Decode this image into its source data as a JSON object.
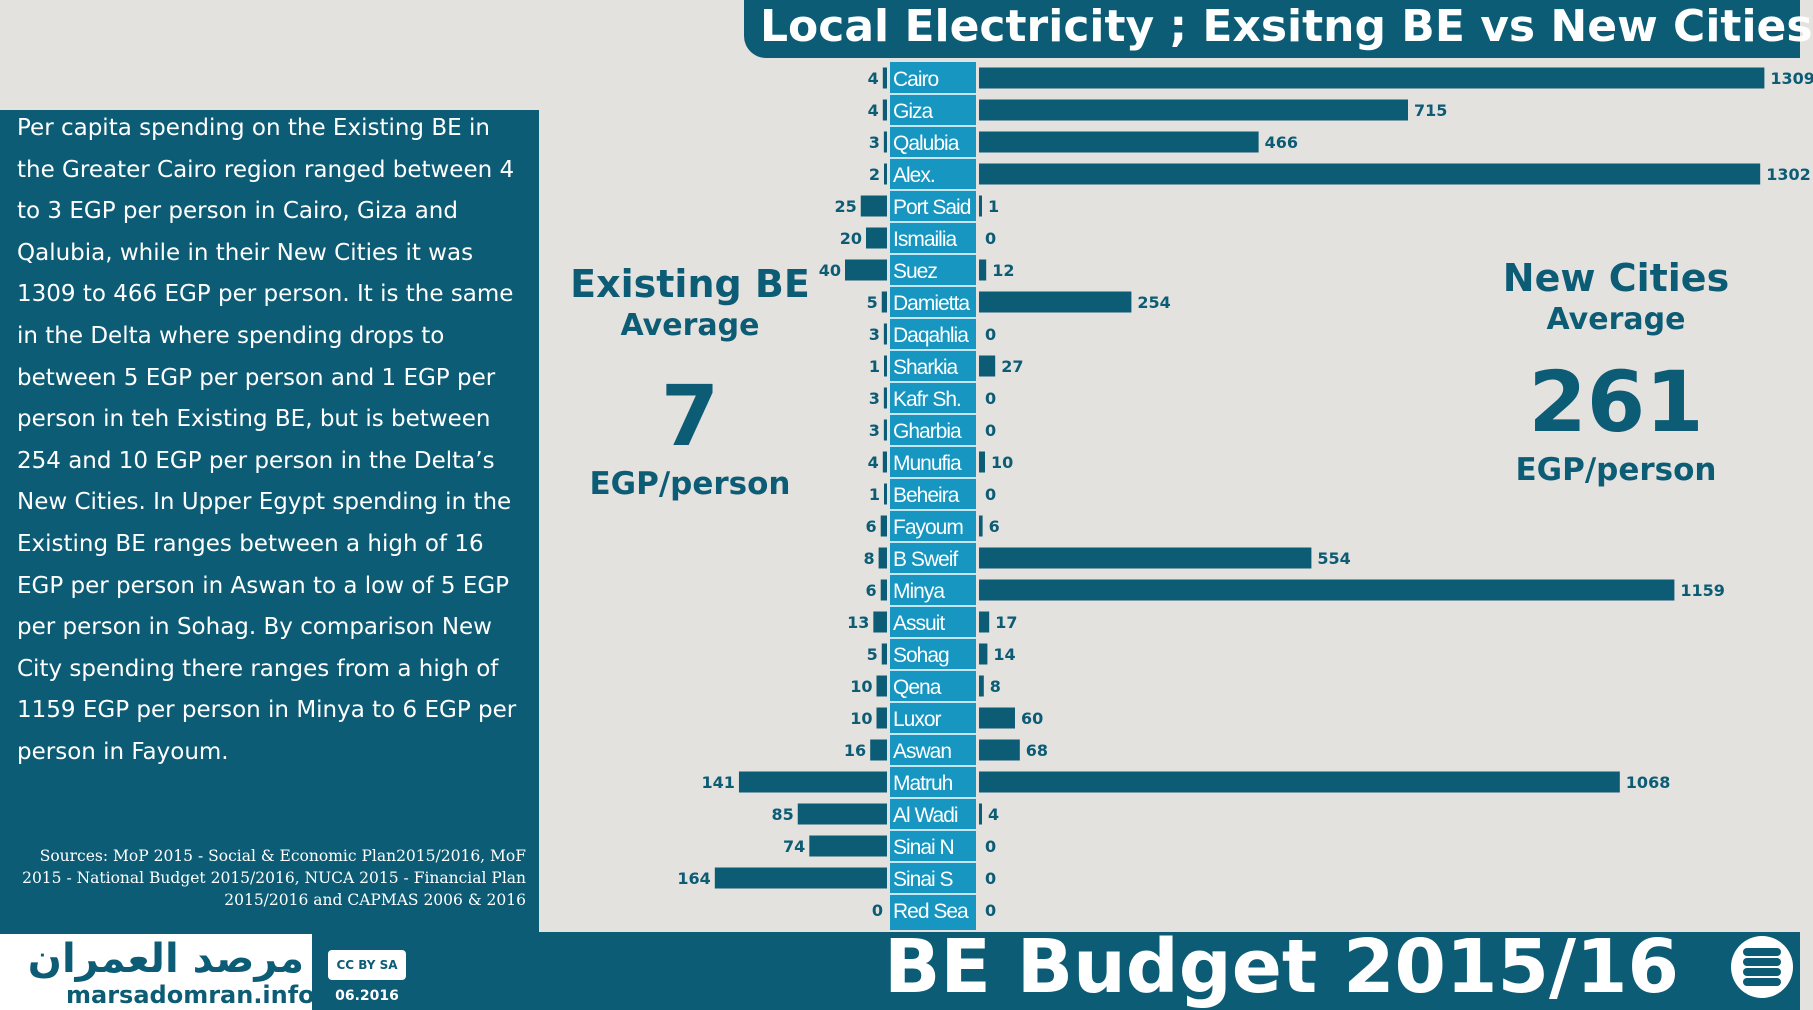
{
  "title": "Local Electricity ; Exsitng BE vs New Cities",
  "description": "Per capita spending on the Existing BE in the Greater Cairo region ranged between 4 to 3 EGP per person in Cairo, Giza and Qalubia, while in their New Cities it was 1309 to 466 EGP per person. It is the same in the Delta where spending drops to between 5 EGP per person and 1 EGP per person in teh Existing BE, but is between 254 and 10 EGP per person in the Delta’s New Cities. In Upper Egypt spending in the Existing BE ranges between a high of 16 EGP per person in Aswan to a low of 5 EGP per person in Sohag. By comparison New City spending there ranges from a high of 1159 EGP per person in Minya to 6 EGP per person in Fayoum.",
  "sources": "Sources: MoP 2015 - Social & Economic Plan2015/2016, MoF 2015 - National Budget 2015/2016, NUCA 2015 - Financial Plan 2015/2016 and CAPMAS 2006 & 2016",
  "existing": {
    "title": "Existing BE",
    "sub": "Average",
    "value": "7",
    "unit": "EGP/person"
  },
  "newcities": {
    "title": "New Cities",
    "sub": "Average",
    "value": "261",
    "unit": "EGP/person"
  },
  "footer": {
    "budget_title": "BE Budget 2015/16",
    "logo_arabic": "مرصد العمران",
    "logo_url": "marsadomran.info",
    "license": "CC BY SA",
    "date": "06.2016"
  },
  "colors": {
    "primary": "#0d5c75",
    "label_band": "#1696c0",
    "background": "#e4e2df"
  },
  "chart_data": {
    "type": "bar",
    "categories": [
      "Cairo",
      "Giza",
      "Qalubia",
      "Alex.",
      "Port Said",
      "Ismailia",
      "Suez",
      "Damietta",
      "Daqahlia",
      "Sharkia",
      "Kafr Sh.",
      "Gharbia",
      "Munufia",
      "Beheira",
      "Fayoum",
      "B Sweif",
      "Minya",
      "Assuit",
      "Sohag",
      "Qena",
      "Luxor",
      "Aswan",
      "Matruh",
      "Al Wadi",
      "Sinai N",
      "Sinai S",
      "Red Sea"
    ],
    "series": [
      {
        "name": "Existing BE",
        "values": [
          4,
          4,
          3,
          2,
          25,
          20,
          40,
          5,
          3,
          1,
          3,
          3,
          4,
          1,
          6,
          8,
          6,
          13,
          5,
          10,
          10,
          16,
          141,
          85,
          74,
          164,
          0
        ]
      },
      {
        "name": "New Cities",
        "values": [
          1309,
          715,
          466,
          1302,
          1,
          0,
          12,
          254,
          0,
          27,
          0,
          0,
          10,
          0,
          6,
          554,
          1159,
          17,
          14,
          8,
          60,
          68,
          1068,
          4,
          0,
          0,
          0
        ]
      }
    ],
    "title": "Local Electricity ; Exsitng BE vs New Cities",
    "xlabel": "",
    "ylabel": "",
    "grid": false
  }
}
